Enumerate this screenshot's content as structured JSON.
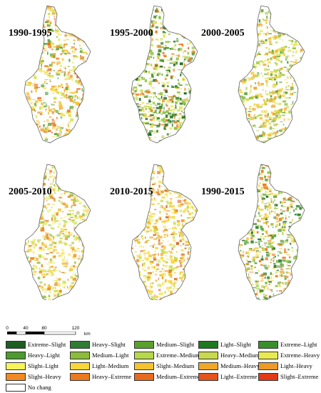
{
  "panels": [
    {
      "title": "1990-1995",
      "palette": [
        "#f4c430",
        "#e89a2a",
        "#d4e34a",
        "#f8e35a",
        "#57a23a",
        "#f36b1c"
      ]
    },
    {
      "title": "1995-2000",
      "palette": [
        "#1e6a1e",
        "#3f8f2a",
        "#8ec23f",
        "#c7df50",
        "#e9e15a",
        "#f07b1c"
      ]
    },
    {
      "title": "2000-2005",
      "palette": [
        "#9cc540",
        "#c7df50",
        "#e8e05a",
        "#f4c430",
        "#5a9f30",
        "#f3a52c"
      ]
    },
    {
      "title": "2005-2010",
      "palette": [
        "#fbef7a",
        "#f7df5c",
        "#f2c33a",
        "#cfe14d",
        "#e88a2a",
        "#9bc340"
      ]
    },
    {
      "title": "2010-2015",
      "palette": [
        "#f6d21e",
        "#f3c52a",
        "#f7e35a",
        "#eea12b",
        "#d96a20",
        "#c5de4d"
      ]
    },
    {
      "title": "1990-2015",
      "palette": [
        "#2f7f2a",
        "#58a53a",
        "#9cc540",
        "#e9e15a",
        "#f4c430",
        "#f07b1c"
      ]
    }
  ],
  "legend": [
    {
      "label": "Extreme–Slight",
      "color": "#1b5e20"
    },
    {
      "label": "Heavy–Slight",
      "color": "#2e7d32"
    },
    {
      "label": "Medium–Slight",
      "color": "#5aa02c"
    },
    {
      "label": "Light–Slight",
      "color": "#1f7a1f"
    },
    {
      "label": "Extreme–Light",
      "color": "#3a8f2a"
    },
    {
      "label": "Heavy–Light",
      "color": "#4d9a2f"
    },
    {
      "label": "Medium–Light",
      "color": "#8cbd3a"
    },
    {
      "label": "Extreme–Medium",
      "color": "#b6d84a"
    },
    {
      "label": "Heavy–Medium",
      "color": "#c9d94d"
    },
    {
      "label": "Extreme–Heavy",
      "color": "#e9ea50"
    },
    {
      "label": "Slight–Light",
      "color": "#f7f35a"
    },
    {
      "label": "Light–Medium",
      "color": "#f7d73a"
    },
    {
      "label": "Slight–Medium",
      "color": "#f4c430"
    },
    {
      "label": "Medium–Heavy",
      "color": "#f0a82a"
    },
    {
      "label": "Light–Heavy",
      "color": "#ee9a2a"
    },
    {
      "label": "Slight–Heavy",
      "color": "#f08a26"
    },
    {
      "label": "Heavy–Extreme",
      "color": "#ea7a1f"
    },
    {
      "label": "Medium–Extreme",
      "color": "#e86a1f"
    },
    {
      "label": "Light–Extreme",
      "color": "#e4531a"
    },
    {
      "label": "Slight–Extreme",
      "color": "#e23a17"
    },
    {
      "label": "No chang",
      "color": "#ffffff"
    }
  ],
  "scale": {
    "ticks": [
      "0",
      "40",
      "80",
      "120"
    ],
    "unit": "km"
  }
}
